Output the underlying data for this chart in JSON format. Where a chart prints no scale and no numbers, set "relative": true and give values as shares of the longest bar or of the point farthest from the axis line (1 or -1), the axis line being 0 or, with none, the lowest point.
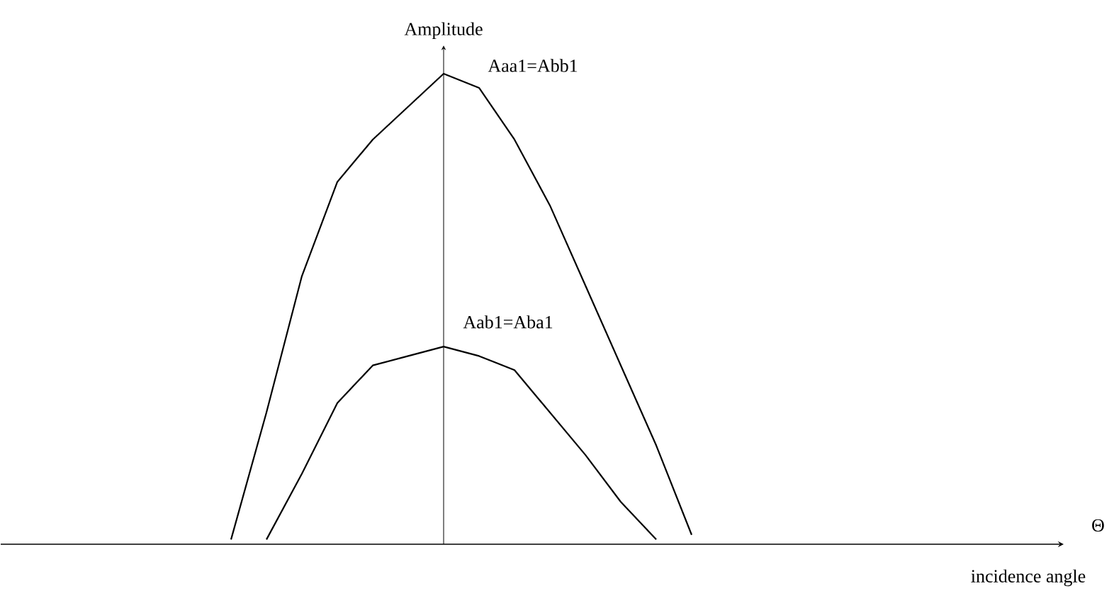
{
  "chart_data": {
    "type": "line",
    "relative": true,
    "tick_labels": false,
    "legend": false,
    "ylabel": "Amplitude",
    "xlabel": "Θ",
    "annotations": [
      "incidence angle"
    ],
    "categories": [
      null,
      null,
      null,
      null,
      null,
      null,
      null,
      null,
      null,
      null,
      null,
      null,
      null,
      null,
      null,
      null,
      null,
      null,
      null,
      null,
      null,
      null,
      null,
      null,
      null,
      null,
      null,
      null,
      null,
      null
    ],
    "series": [
      {
        "name": "Aaa1=Abb1",
        "color": "#000000",
        "values": [
          null,
          null,
          null,
          null,
          null,
          null,
          0.01,
          0.28,
          0.57,
          0.77,
          0.86,
          0.93,
          1.0,
          0.97,
          0.86,
          0.72,
          0.55,
          0.38,
          0.21,
          0.02,
          null,
          null,
          null,
          null,
          null,
          null,
          null,
          null,
          null,
          null
        ]
      },
      {
        "name": "Aab1=Aba1",
        "color": "#000000",
        "values": [
          null,
          null,
          null,
          null,
          null,
          null,
          null,
          0.01,
          0.15,
          0.3,
          0.38,
          0.4,
          0.42,
          0.4,
          0.37,
          0.28,
          0.19,
          0.09,
          0.01,
          null,
          null,
          null,
          null,
          null,
          null,
          null,
          null,
          null,
          null,
          null
        ]
      }
    ]
  }
}
